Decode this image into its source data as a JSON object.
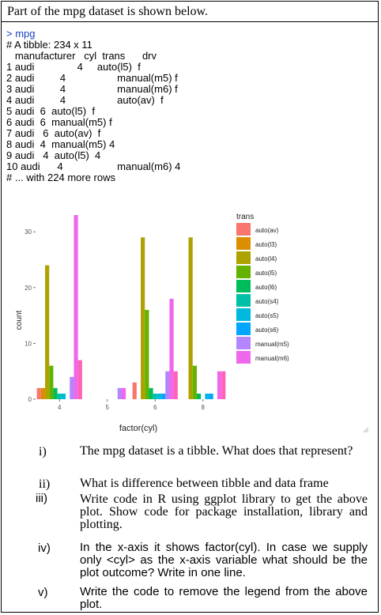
{
  "heading": "Part of the mpg dataset is shown below.",
  "console": {
    "prompt": "> mpg",
    "lines": [
      "# A tibble: 234 x 11",
      "   manufacturer   cyl  trans      drv",
      "1 audi               4     auto(l5)  f",
      "2 audi         4                  manual(m5) f",
      "3 audi         4                  manual(m6) f",
      "4 audi         4                  auto(av)  f",
      "5 audi  6  auto(l5)  f",
      "6 audi  6  manual(m5) f",
      "7 audi   6  auto(av)  f",
      "8 audi  4  manual(m5) 4",
      "9 audi   4  auto(l5)  4",
      "10 audi      4                   manual(m6) 4",
      "# ... with 224 more rows"
    ]
  },
  "chart_data": {
    "type": "bar",
    "xlabel": "factor(cyl)",
    "ylabel": "count",
    "ylim": [
      0,
      34
    ],
    "yticks": [
      0,
      10,
      20,
      30
    ],
    "categories": [
      "4",
      "5",
      "6",
      "8"
    ],
    "legend_title": "trans",
    "legend_position": "right",
    "series": [
      {
        "name": "auto(av)",
        "color": "#F8766D",
        "values": [
          2,
          0,
          3,
          0
        ]
      },
      {
        "name": "auto(l3)",
        "color": "#DB8E00",
        "values": [
          2,
          0,
          0,
          0
        ]
      },
      {
        "name": "auto(l4)",
        "color": "#AEA200",
        "values": [
          24,
          0,
          29,
          29
        ]
      },
      {
        "name": "auto(l5)",
        "color": "#64B200",
        "values": [
          6,
          0,
          16,
          6
        ]
      },
      {
        "name": "auto(l6)",
        "color": "#00BD5C",
        "values": [
          2,
          0,
          2,
          1
        ]
      },
      {
        "name": "auto(s4)",
        "color": "#00C1A7",
        "values": [
          1,
          0,
          1,
          0
        ]
      },
      {
        "name": "auto(s5)",
        "color": "#00BADE",
        "values": [
          1,
          0,
          1,
          1
        ]
      },
      {
        "name": "auto(s6)",
        "color": "#00A6FF",
        "values": [
          0,
          0,
          1,
          1
        ]
      },
      {
        "name": "manual(m5)",
        "color": "#B385FF",
        "values": [
          4,
          2,
          5,
          0
        ]
      },
      {
        "name": "manual(m6)",
        "color": "#EF67EB",
        "values": [
          33,
          2,
          18,
          5
        ]
      },
      {
        "name": "",
        "color": "#FF63B6",
        "values": [
          7,
          0,
          5,
          5
        ]
      }
    ]
  },
  "questions": [
    {
      "num": "i)",
      "text": "The mpg dataset is a tibble. What does that represent?"
    },
    {
      "num": "ii)",
      "text": "What is difference between tibble and data frame"
    },
    {
      "num": "iii)",
      "text": "Write code in R using ggplot library to get the above plot. Show code for package installation, library and plotting."
    },
    {
      "num": "iv)",
      "text": "In the x-axis it shows factor(cyl). In case we supply only <cyl> as the x-axis variable what should be the plot outcome? Write in one line."
    },
    {
      "num": "v)",
      "text": "Write the code to remove the legend from the above plot."
    }
  ]
}
